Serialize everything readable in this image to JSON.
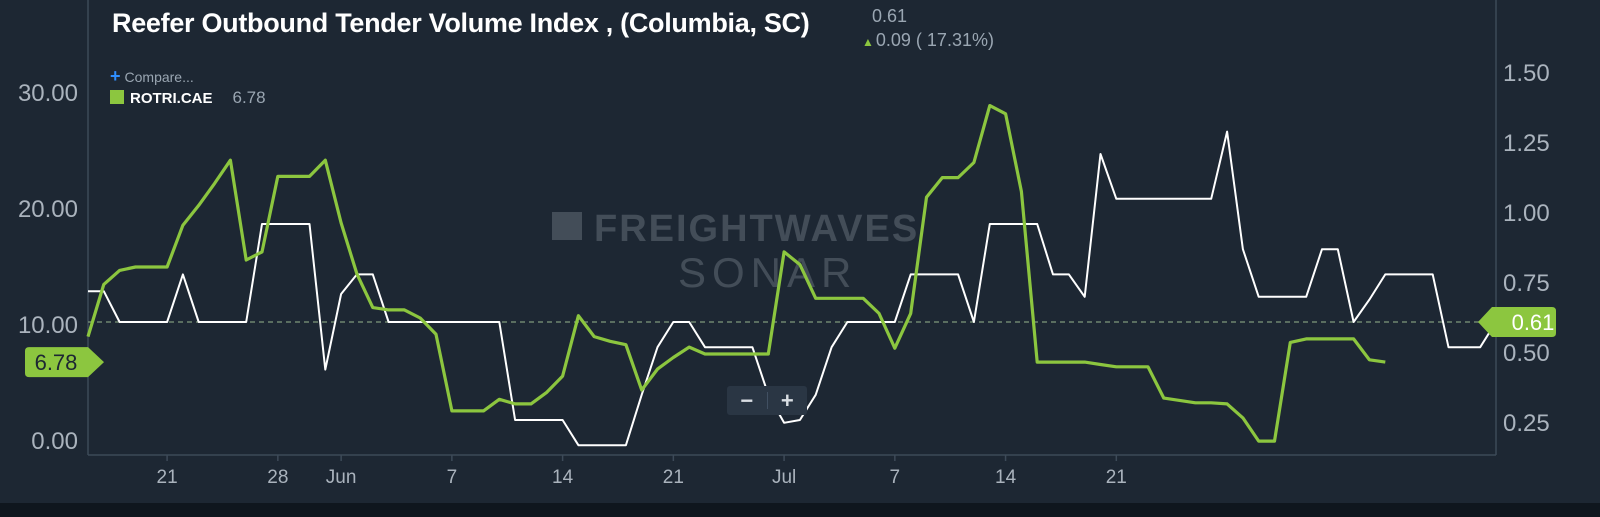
{
  "header": {
    "title": "Reefer Outbound Tender Volume Index , (Columbia, SC)",
    "price": "0.61",
    "change": "0.09 ( 17.31%)"
  },
  "compare_label": "Compare...",
  "legend": {
    "symbol": "ROTRI.CAE",
    "value": "6.78"
  },
  "watermark": {
    "line1": "FREIGHTWAVES",
    "line2": "SONAR"
  },
  "zoom": {
    "minus": "−",
    "plus": "+"
  },
  "colors": {
    "background": "#1d2733",
    "primary": "#ffffff",
    "secondary": "#8cc63f",
    "axis_text": "#aab3bd"
  },
  "chart_data": {
    "type": "line",
    "x_tick_labels": [
      "21",
      "28",
      "Jun",
      "7",
      "14",
      "21",
      "Jul",
      "7",
      "14",
      "21"
    ],
    "x_tick_index": [
      5,
      12,
      16,
      23,
      30,
      37,
      44,
      51,
      58,
      65
    ],
    "left_axis": {
      "ticks": [
        "0.00",
        "10.00",
        "20.00",
        "30.00"
      ],
      "range": [
        -1.2,
        38
      ]
    },
    "right_axis": {
      "ticks": [
        "0.25",
        "0.50",
        "0.75",
        "1.00",
        "1.25",
        "1.50"
      ],
      "range": [
        0.135,
        1.76
      ]
    },
    "reference_value": 0.61,
    "right_badge": "0.61",
    "left_badge": "6.78",
    "series": [
      {
        "axis": "right",
        "color": "#ffffff",
        "values": [
          0.72,
          0.72,
          0.61,
          0.61,
          0.61,
          0.61,
          0.78,
          0.61,
          0.61,
          0.61,
          0.61,
          0.96,
          0.96,
          0.96,
          0.96,
          0.44,
          0.71,
          0.78,
          0.78,
          0.61,
          0.61,
          0.61,
          0.61,
          0.61,
          0.61,
          0.61,
          0.61,
          0.26,
          0.26,
          0.26,
          0.26,
          0.17,
          0.17,
          0.17,
          0.17,
          0.35,
          0.52,
          0.61,
          0.61,
          0.52,
          0.52,
          0.52,
          0.52,
          0.35,
          0.25,
          0.26,
          0.35,
          0.52,
          0.61,
          0.61,
          0.61,
          0.61,
          0.78,
          0.78,
          0.78,
          0.78,
          0.61,
          0.96,
          0.96,
          0.96,
          0.96,
          0.78,
          0.78,
          0.7,
          1.21,
          1.05,
          1.05,
          1.05,
          1.05,
          1.05,
          1.05,
          1.05,
          1.29,
          0.87,
          0.7,
          0.7,
          0.7,
          0.7,
          0.87,
          0.87,
          0.61,
          0.69,
          0.78,
          0.78,
          0.78,
          0.78,
          0.52,
          0.52,
          0.52,
          0.61
        ]
      },
      {
        "axis": "left",
        "color": "#8cc63f",
        "values": [
          9.0,
          13.5,
          14.7,
          15.0,
          15.0,
          15.0,
          18.6,
          20.3,
          22.2,
          24.2,
          15.6,
          16.3,
          22.8,
          22.8,
          22.8,
          24.2,
          18.8,
          14.4,
          11.5,
          11.3,
          11.3,
          10.6,
          9.2,
          2.6,
          2.6,
          2.6,
          3.6,
          3.2,
          3.2,
          4.2,
          5.6,
          10.8,
          9.0,
          8.6,
          8.3,
          4.4,
          6.2,
          7.2,
          8.1,
          7.5,
          7.5,
          7.5,
          7.5,
          7.5,
          16.3,
          15.2,
          12.3,
          12.3,
          12.3,
          12.3,
          11.0,
          8.0,
          11.0,
          21.0,
          22.7,
          22.7,
          24.0,
          28.9,
          28.2,
          21.5,
          6.8,
          6.8,
          6.8,
          6.8,
          6.6,
          6.4,
          6.4,
          6.4,
          3.7,
          3.5,
          3.3,
          3.3,
          3.2,
          2.0,
          0.0,
          0.0,
          8.5,
          8.8,
          8.8,
          8.8,
          8.8,
          7.0,
          6.8
        ],
        "notes": ""
      }
    ]
  }
}
